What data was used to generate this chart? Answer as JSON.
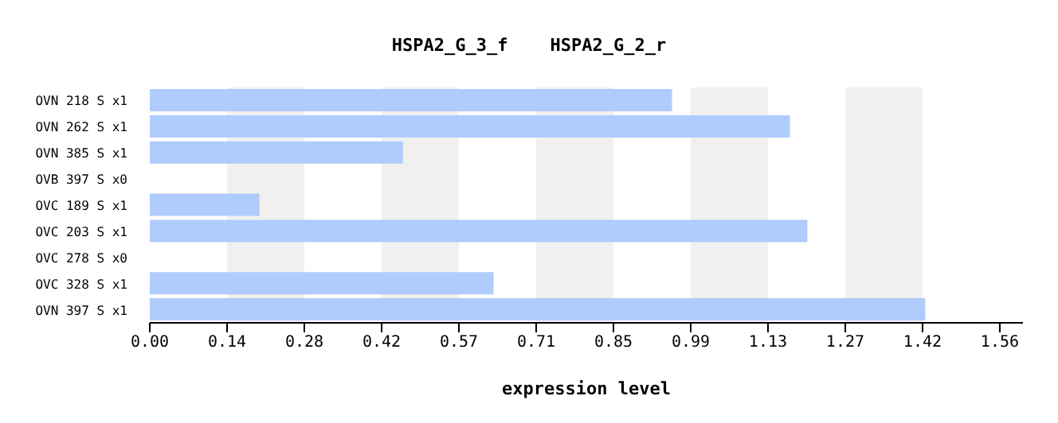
{
  "chart_data": {
    "type": "bar",
    "orientation": "horizontal",
    "title": "HSPA2_G_3_f    HSPA2_G_2_r",
    "xlabel": "expression level",
    "categories": [
      "OVN 218 S x1",
      "OVN 262 S x1",
      "OVN 385 S x1",
      "OVB 397 S x0",
      "OVC 189 S x1",
      "OVC 203 S x1",
      "OVC 278 S x0",
      "OVC 328 S x1",
      "OVN 397 S x1"
    ],
    "values": [
      0.957,
      1.173,
      0.464,
      0,
      0.201,
      1.205,
      0,
      0.63,
      1.421
    ],
    "color": "#b0cbfd",
    "xlim": [
      0,
      1.6
    ],
    "xticks": [
      {
        "value": 0,
        "label": "0.00"
      },
      {
        "value": 0.1416,
        "label": "0.14"
      },
      {
        "value": 0.2832,
        "label": "0.28"
      },
      {
        "value": 0.4248,
        "label": "0.42"
      },
      {
        "value": 0.5664,
        "label": "0.57"
      },
      {
        "value": 0.708,
        "label": "0.71"
      },
      {
        "value": 0.8496,
        "label": "0.85"
      },
      {
        "value": 0.9912,
        "label": "0.99"
      },
      {
        "value": 1.1328,
        "label": "1.13"
      },
      {
        "value": 1.2744,
        "label": "1.27"
      },
      {
        "value": 1.416,
        "label": "1.42"
      },
      {
        "value": 1.5576,
        "label": "1.56"
      }
    ],
    "bands": [
      {
        "axis": "x",
        "from": 0.1416,
        "to": 0.2832,
        "color": "#f0f0f0"
      },
      {
        "axis": "x",
        "from": 0.4248,
        "to": 0.5664,
        "color": "#f0f0f0"
      },
      {
        "axis": "x",
        "from": 0.708,
        "to": 0.8496,
        "color": "#f0f0f0"
      },
      {
        "axis": "x",
        "from": 0.9912,
        "to": 1.1328,
        "color": "#f0f0f0"
      },
      {
        "axis": "x",
        "from": 1.2744,
        "to": 1.416,
        "color": "#f0f0f0"
      }
    ]
  }
}
